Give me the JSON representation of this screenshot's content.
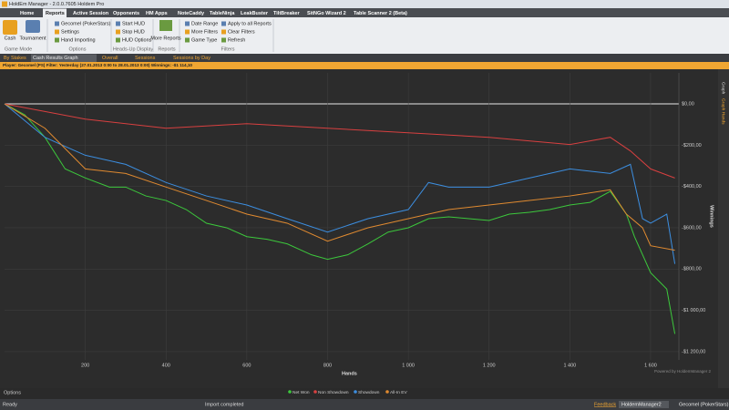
{
  "window": {
    "title": "HoldEm Manager - 2.0.0.7605 Holdem Pro"
  },
  "menu": {
    "tabs": [
      "Home",
      "Reports",
      "Active Session",
      "Opponents",
      "HM Apps",
      "NoteCaddy",
      "TableNinja",
      "LeakBuster",
      "TiltBreaker",
      "SitNGo Wizard 2",
      "Table Scanner 2 (Beta)"
    ]
  },
  "ribbon": {
    "groups": [
      {
        "label": "Game Mode",
        "items": [
          "Cash",
          "Tournament"
        ]
      },
      {
        "label": "Options",
        "items": [
          "Gecomel (PokerStars)",
          "Settings",
          "Hand Importing"
        ]
      },
      {
        "label": "Heads-Up Display",
        "items": [
          "Start HUD",
          "Stop HUD",
          "HUD Options"
        ]
      },
      {
        "label": "Reports",
        "items": [
          "More Reports"
        ]
      },
      {
        "label": "Filters",
        "items": [
          "Date Range",
          "More Filters",
          "Game Type",
          "Apply to all Reports",
          "Clear Filters",
          "Refresh"
        ]
      }
    ]
  },
  "report_tabs": [
    "By Stakes",
    "Cash Results Graph",
    "Overall",
    "Sessions",
    "Sessions by Day"
  ],
  "filter_bar": "Player: Gecomel (PS) Filter: Yesterday (27.01.2013 0:00 to 28.01.2013 0:00) Winnings: -$1 114,10",
  "side_tabs": [
    "Graph",
    "Graph Hands"
  ],
  "chart_data": {
    "type": "line",
    "xlabel": "Hands",
    "ylabel": "Winnings",
    "xlim": [
      0,
      1670
    ],
    "ylim": [
      -1240,
      150
    ],
    "xticks": [
      200,
      400,
      600,
      800,
      {
        "value": 1000,
        "label": "1 000"
      },
      {
        "value": 1200,
        "label": "1 200"
      },
      {
        "value": 1400,
        "label": "1 400"
      },
      {
        "value": 1600,
        "label": "1 600"
      }
    ],
    "yticks": [
      {
        "value": 0,
        "label": "$0,00"
      },
      {
        "value": -200,
        "label": "-$200,00"
      },
      {
        "value": -400,
        "label": "-$400,00"
      },
      {
        "value": -600,
        "label": "-$600,00"
      },
      {
        "value": -800,
        "label": "-$800,00"
      },
      {
        "value": -1000,
        "label": "-$1 000,00"
      },
      {
        "value": -1200,
        "label": "-$1 200,00"
      }
    ],
    "grid": true,
    "series": [
      {
        "name": "Net Won",
        "color": "#3cc83c",
        "x": [
          0,
          50,
          100,
          150,
          200,
          260,
          300,
          350,
          400,
          450,
          500,
          550,
          600,
          650,
          700,
          760,
          800,
          850,
          900,
          950,
          1000,
          1050,
          1100,
          1150,
          1200,
          1250,
          1300,
          1350,
          1400,
          1450,
          1500,
          1540,
          1560,
          1600,
          1640,
          1660
        ],
        "values": [
          0,
          -53,
          -162,
          -315,
          -359,
          -403,
          -403,
          -446,
          -468,
          -512,
          -578,
          -600,
          -643,
          -656,
          -678,
          -731,
          -753,
          -731,
          -678,
          -621,
          -600,
          -556,
          -547,
          -556,
          -565,
          -534,
          -525,
          -512,
          -490,
          -477,
          -424,
          -534,
          -643,
          -818,
          -897,
          -1114.1
        ]
      },
      {
        "name": "Non Showdown",
        "color": "#d84040",
        "x": [
          0,
          200,
          400,
          600,
          800,
          1000,
          1200,
          1400,
          1500,
          1550,
          1600,
          1660
        ],
        "values": [
          0,
          -74,
          -118,
          -96,
          -118,
          -140,
          -162,
          -197,
          -162,
          -228,
          -315,
          -359
        ]
      },
      {
        "name": "Showdown",
        "color": "#3c8ee0",
        "x": [
          0,
          100,
          150,
          200,
          300,
          400,
          500,
          600,
          700,
          800,
          900,
          1000,
          1050,
          1100,
          1200,
          1300,
          1400,
          1500,
          1550,
          1580,
          1600,
          1640,
          1660
        ],
        "values": [
          0,
          -162,
          -206,
          -249,
          -293,
          -381,
          -446,
          -490,
          -556,
          -621,
          -556,
          -512,
          -381,
          -403,
          -403,
          -359,
          -315,
          -337,
          -293,
          -556,
          -578,
          -534,
          -775
        ]
      },
      {
        "name": "All-In EV",
        "color": "#e08a30",
        "x": [
          0,
          100,
          200,
          300,
          400,
          500,
          600,
          700,
          800,
          900,
          1000,
          1100,
          1200,
          1300,
          1400,
          1500,
          1540,
          1580,
          1600,
          1660
        ],
        "values": [
          0,
          -118,
          -315,
          -337,
          -403,
          -468,
          -534,
          -578,
          -665,
          -600,
          -556,
          -512,
          -490,
          -468,
          -446,
          -416,
          -534,
          -600,
          -687,
          -709
        ]
      }
    ]
  },
  "branding": "Powered by HoldemManager 2",
  "options_button": "Options",
  "status_bar": {
    "left": "Ready",
    "center": "Import completed",
    "feedback": "Feedback",
    "taskbar": [
      "HoldemManager2",
      "Gecomel (PokerStars)"
    ]
  }
}
